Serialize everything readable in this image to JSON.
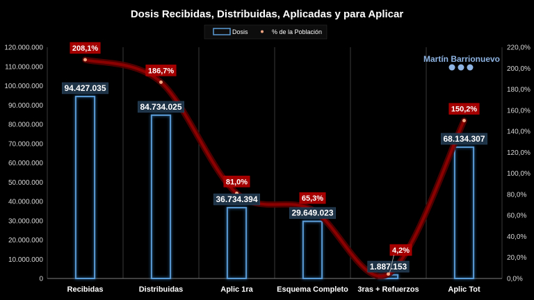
{
  "chart_data": {
    "type": "bar",
    "title": "Dosis Recibidas, Distribuidas, Aplicadas y para Aplicar",
    "categories": [
      "Recibidas",
      "Distribuidas",
      "Aplic 1ra",
      "Esquema Completo",
      "3ras + Refuerzos",
      "Aplic Tot"
    ],
    "series": [
      {
        "name": "Dosis",
        "kind": "bar",
        "axis": "left",
        "values": [
          94427035,
          84734025,
          36734394,
          29649023,
          1887153,
          68134307
        ],
        "labels": [
          "94.427.035",
          "84.734.025",
          "36.734.394",
          "29.649.023",
          "1.887.153",
          "68.134.307"
        ],
        "color": "#5b9bd5"
      },
      {
        "name": "% de la Población",
        "kind": "line",
        "axis": "right",
        "values": [
          208.1,
          186.7,
          81.0,
          65.3,
          4.2,
          150.2
        ],
        "labels": [
          "208,1%",
          "186,7%",
          "81,0%",
          "65,3%",
          "4,2%",
          "150,2%"
        ],
        "color": "#c00000"
      }
    ],
    "y_left": {
      "ylim": [
        0,
        120000000
      ],
      "ticks": [
        "0",
        "10.000.000",
        "20.000.000",
        "30.000.000",
        "40.000.000",
        "50.000.000",
        "60.000.000",
        "70.000.000",
        "80.000.000",
        "90.000.000",
        "100.000.000",
        "110.000.000",
        "120.000.000"
      ]
    },
    "y_right": {
      "ylim": [
        0,
        220
      ],
      "ticks": [
        "0,0%",
        "20,0%",
        "40,0%",
        "60,0%",
        "80,0%",
        "100,0%",
        "120,0%",
        "140,0%",
        "160,0%",
        "180,0%",
        "200,0%",
        "220,0%"
      ]
    },
    "grid": "vertical",
    "legend": "top-center",
    "background": "#000000"
  },
  "watermark": {
    "text": "Martín Barrionuevo",
    "icons": [
      "facebook-icon",
      "twitter-icon",
      "instagram-icon"
    ]
  }
}
